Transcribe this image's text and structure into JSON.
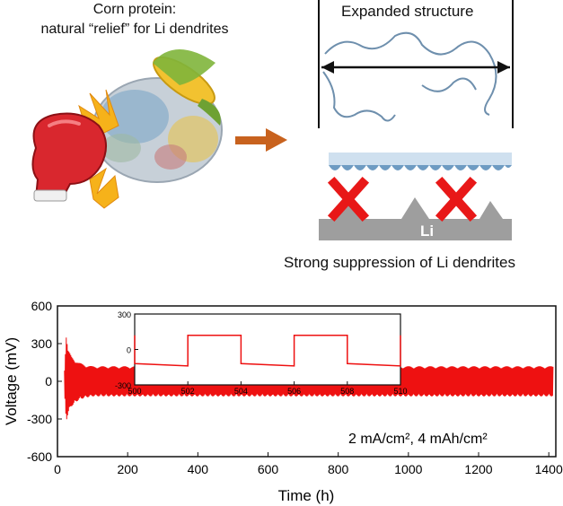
{
  "top_panel": {
    "left_title_line1": "Corn protein:",
    "left_title_line2": "natural “relief” for Li dendrites",
    "expanded_label": "Expanded structure",
    "li_label": "Li",
    "caption": "Strong suppression of Li dendrites"
  },
  "chart_data": {
    "type": "line",
    "xlabel": "Time (h)",
    "ylabel": "Voltage (mV)",
    "xlim": [
      0,
      1420
    ],
    "ylim": [
      -600,
      600
    ],
    "xticks": [
      0,
      200,
      400,
      600,
      800,
      1000,
      1200,
      1400
    ],
    "yticks": [
      -600,
      -300,
      0,
      300,
      600
    ],
    "annotation": "2 mA/cm², 4 mAh/cm²",
    "envelope": {
      "x": [
        20,
        25,
        30,
        40,
        60,
        80,
        100,
        200,
        400,
        600,
        800,
        1000,
        1200,
        1400
      ],
      "upper": [
        100,
        380,
        250,
        200,
        150,
        130,
        120,
        120,
        120,
        120,
        120,
        120,
        120,
        120
      ],
      "lower": [
        -100,
        -320,
        -260,
        -200,
        -150,
        -130,
        -120,
        -120,
        -120,
        -120,
        -120,
        -120,
        -120,
        -120
      ]
    },
    "inset": {
      "xlim": [
        500,
        510
      ],
      "ylim": [
        -300,
        300
      ],
      "xticks": [
        500,
        502,
        504,
        506,
        508,
        510
      ],
      "yticks": [
        -300,
        0,
        300
      ],
      "x": [
        500,
        500,
        502,
        502,
        504,
        504,
        506,
        506,
        508,
        508,
        510,
        510
      ],
      "y": [
        120,
        -120,
        -140,
        120,
        120,
        -120,
        -140,
        120,
        120,
        -120,
        -140,
        120
      ]
    }
  },
  "colors": {
    "trace": "#ee1111",
    "arrow": "#c8621e",
    "li_block": "#9e9e9e",
    "cross": "#e81818",
    "tick_text": "#111111"
  }
}
